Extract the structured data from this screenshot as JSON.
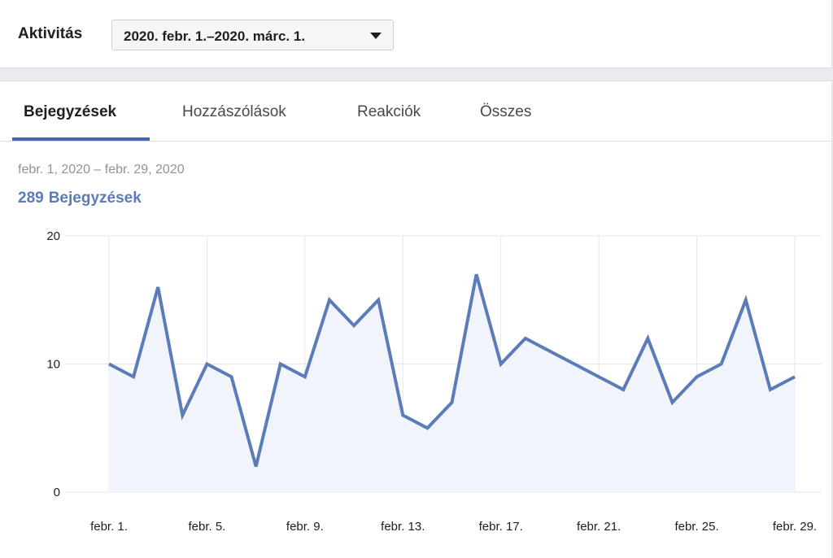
{
  "header": {
    "title": "Aktivitás",
    "date_range_select": "2020. febr. 1.–2020. márc. 1."
  },
  "tabs": [
    {
      "label": "Bejegyzések",
      "active": true
    },
    {
      "label": "Hozzászólások",
      "active": false
    },
    {
      "label": "Reakciók",
      "active": false
    },
    {
      "label": "Összes",
      "active": false
    }
  ],
  "summary": {
    "date_range": "febr. 1, 2020 – febr. 29, 2020",
    "count": "289",
    "metric": "Bejegyzések"
  },
  "colors": {
    "accent": "#4267b2",
    "line": "#5b7bb9",
    "area_fill": "#f2f4fb",
    "grid": "#e4e6eb"
  },
  "chart_data": {
    "type": "area",
    "title": "",
    "xlabel": "",
    "ylabel": "",
    "ylim": [
      0,
      20
    ],
    "yticks": [
      0,
      10,
      20
    ],
    "x": [
      1,
      2,
      3,
      4,
      5,
      6,
      7,
      8,
      9,
      10,
      11,
      12,
      13,
      14,
      15,
      16,
      17,
      18,
      19,
      20,
      21,
      22,
      23,
      24,
      25,
      26,
      27,
      28,
      29
    ],
    "xticks": [
      {
        "x": 1,
        "label": "febr. 1."
      },
      {
        "x": 5,
        "label": "febr. 5."
      },
      {
        "x": 9,
        "label": "febr. 9."
      },
      {
        "x": 13,
        "label": "febr. 13."
      },
      {
        "x": 17,
        "label": "febr. 17."
      },
      {
        "x": 21,
        "label": "febr. 21."
      },
      {
        "x": 25,
        "label": "febr. 25."
      },
      {
        "x": 29,
        "label": "febr. 29."
      }
    ],
    "series": [
      {
        "values": [
          10,
          9,
          16,
          6,
          10,
          9,
          2,
          10,
          9,
          15,
          13,
          15,
          6,
          5,
          7,
          17,
          10,
          12,
          11,
          10,
          9,
          8,
          12,
          7,
          9,
          10,
          15,
          8,
          9
        ]
      }
    ],
    "grid": true
  }
}
